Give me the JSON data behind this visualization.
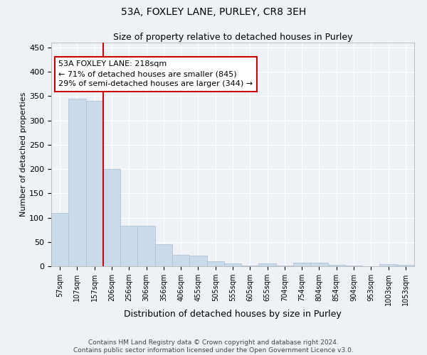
{
  "title": "53A, FOXLEY LANE, PURLEY, CR8 3EH",
  "subtitle": "Size of property relative to detached houses in Purley",
  "xlabel": "Distribution of detached houses by size in Purley",
  "ylabel": "Number of detached properties",
  "bar_color": "#c9daea",
  "bar_edge_color": "#aabcce",
  "background_color": "#eef2f7",
  "grid_color": "#ffffff",
  "categories": [
    "57sqm",
    "107sqm",
    "157sqm",
    "206sqm",
    "256sqm",
    "306sqm",
    "356sqm",
    "406sqm",
    "455sqm",
    "505sqm",
    "555sqm",
    "605sqm",
    "655sqm",
    "704sqm",
    "754sqm",
    "804sqm",
    "854sqm",
    "904sqm",
    "953sqm",
    "1003sqm",
    "1053sqm"
  ],
  "values": [
    110,
    345,
    340,
    200,
    83,
    83,
    46,
    23,
    22,
    10,
    6,
    2,
    6,
    1,
    8,
    7,
    3,
    1,
    0,
    4,
    3
  ],
  "vline_x_index": 2.5,
  "vline_color": "#cc0000",
  "annotation_text": "53A FOXLEY LANE: 218sqm\n← 71% of detached houses are smaller (845)\n29% of semi-detached houses are larger (344) →",
  "annotation_box_color": "#ffffff",
  "annotation_box_edge_color": "#cc0000",
  "ylim": [
    0,
    460
  ],
  "yticks": [
    0,
    50,
    100,
    150,
    200,
    250,
    300,
    350,
    400,
    450
  ],
  "title_fontsize": 10,
  "subtitle_fontsize": 9,
  "xlabel_fontsize": 9,
  "ylabel_fontsize": 8,
  "tick_fontsize": 7,
  "footer_line1": "Contains HM Land Registry data © Crown copyright and database right 2024.",
  "footer_line2": "Contains public sector information licensed under the Open Government Licence v3.0.",
  "footer_fontsize": 6.5
}
